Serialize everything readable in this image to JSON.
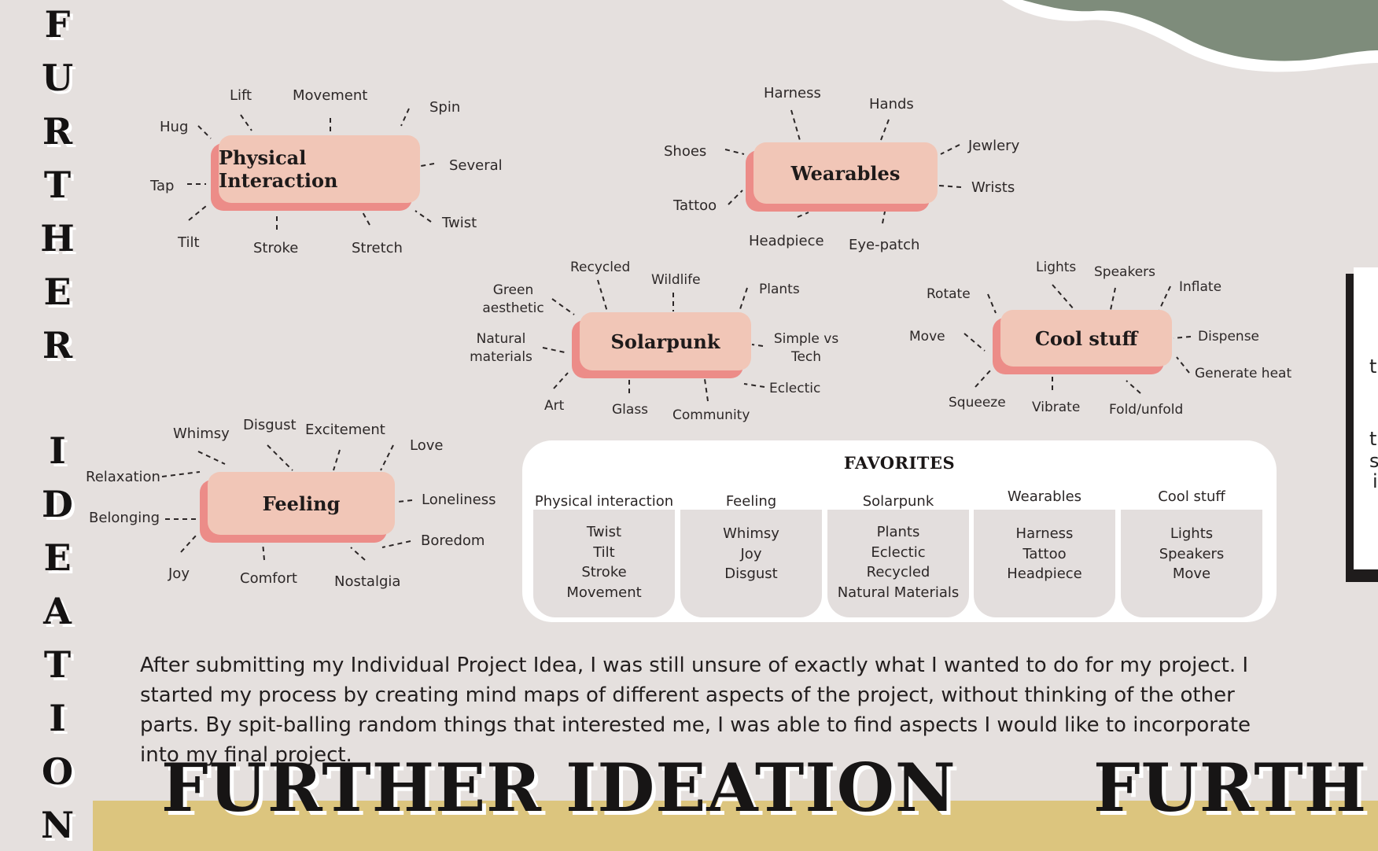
{
  "vertical_title": [
    "F",
    "U",
    "R",
    "T",
    "H",
    "E",
    "R",
    "",
    "I",
    "D",
    "E",
    "A",
    "T",
    "I",
    "O",
    "N"
  ],
  "bottom_title": "FURTHER IDEATION",
  "bottom_title_repeat": "FURTH",
  "colors": {
    "background": "#e5e0de",
    "node_face": "#f1c6b7",
    "node_shadow": "#ec8c88",
    "band": "#dcc57e",
    "blob": "#7e8c7b"
  },
  "mindmaps": [
    {
      "id": "physical",
      "title": "Physical Interaction",
      "leaves": [
        "Hug",
        "Lift",
        "Movement",
        "Spin",
        "Several",
        "Twist",
        "Stretch",
        "Stroke",
        "Tilt",
        "Tap"
      ]
    },
    {
      "id": "wearables",
      "title": "Wearables",
      "leaves": [
        "Harness",
        "Hands",
        "Jewlery",
        "Wrists",
        "Eye-patch",
        "Headpiece",
        "Tattoo",
        "Shoes"
      ]
    },
    {
      "id": "solarpunk",
      "title": "Solarpunk",
      "leaves": [
        "Green aesthetic",
        "Recycled",
        "Wildlife",
        "Plants",
        "Simple vs Tech",
        "Eclectic",
        "Community",
        "Glass",
        "Art",
        "Natural materials"
      ]
    },
    {
      "id": "cool",
      "title": "Cool stuff",
      "leaves": [
        "Rotate",
        "Lights",
        "Speakers",
        "Inflate",
        "Dispense",
        "Generate heat",
        "Fold/unfold",
        "Vibrate",
        "Squeeze",
        "Move"
      ]
    },
    {
      "id": "feeling",
      "title": "Feeling",
      "leaves": [
        "Whimsy",
        "Disgust",
        "Excitement",
        "Love",
        "Loneliness",
        "Boredom",
        "Nostalgia",
        "Comfort",
        "Joy",
        "Belonging",
        "Relaxation"
      ]
    }
  ],
  "favorites": {
    "title": "FAVORITES",
    "columns": [
      {
        "header": "Physical interaction",
        "items": [
          "Twist",
          "Tilt",
          "Stroke",
          "Movement"
        ]
      },
      {
        "header": "Feeling",
        "items": [
          "Whimsy",
          "Joy",
          "Disgust"
        ]
      },
      {
        "header": "Solarpunk",
        "items": [
          "Plants",
          "Eclectic",
          "Recycled",
          "Natural Materials"
        ]
      },
      {
        "header": "Wearables",
        "items": [
          "Harness",
          "Tattoo",
          "Headpiece"
        ]
      },
      {
        "header": "Cool stuff",
        "items": [
          "Lights",
          "Speakers",
          "Move"
        ]
      }
    ]
  },
  "paragraph": "After submitting my Individual Project Idea, I was still unsure of exactly what I wanted to do for my project. I started my process by creating mind maps of different aspects of the project, without thinking of the other parts. By spit-balling random things that interested me, I was able to find aspects I would like to incorporate into my final project.",
  "right_card_fragments": [
    "t",
    "t",
    "s",
    "i"
  ]
}
